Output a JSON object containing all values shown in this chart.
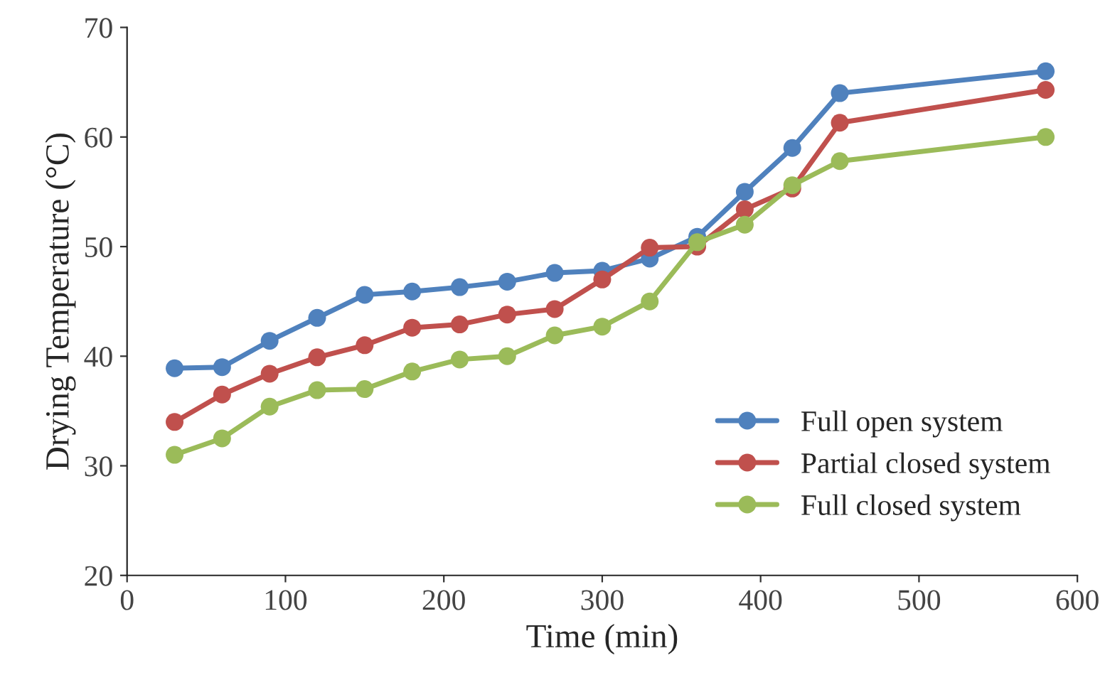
{
  "chart_data": {
    "type": "line",
    "xlabel": "Time (min)",
    "ylabel": "Drying Temperature (°C)",
    "x": [
      30,
      60,
      90,
      120,
      150,
      180,
      210,
      240,
      270,
      300,
      330,
      360,
      390,
      420,
      450,
      580
    ],
    "series": [
      {
        "name": "Full open system",
        "color": "#4f81bd",
        "values": [
          38.9,
          39.0,
          41.4,
          43.5,
          45.6,
          45.9,
          46.3,
          46.8,
          47.6,
          47.8,
          48.9,
          50.9,
          55.0,
          59.0,
          64.0,
          66.0
        ]
      },
      {
        "name": "Partial closed system",
        "color": "#c0504d",
        "values": [
          34.0,
          36.5,
          38.4,
          39.9,
          41.0,
          42.6,
          42.9,
          43.8,
          44.3,
          47.0,
          49.9,
          50.0,
          53.4,
          55.3,
          61.3,
          64.3
        ]
      },
      {
        "name": "Full closed system",
        "color": "#9bbb59",
        "values": [
          31.0,
          32.5,
          35.4,
          36.9,
          37.0,
          38.6,
          39.7,
          40.0,
          41.9,
          42.7,
          45.0,
          50.4,
          52.0,
          55.6,
          57.8,
          60.0
        ]
      }
    ],
    "xlim": [
      0,
      600
    ],
    "xticks": [
      0,
      100,
      200,
      300,
      400,
      500,
      600
    ],
    "ylim": [
      20,
      70
    ],
    "yticks": [
      20,
      30,
      40,
      50,
      60,
      70
    ],
    "marker": "circle",
    "line_style": "solid",
    "legend": "center right",
    "grid": false
  }
}
